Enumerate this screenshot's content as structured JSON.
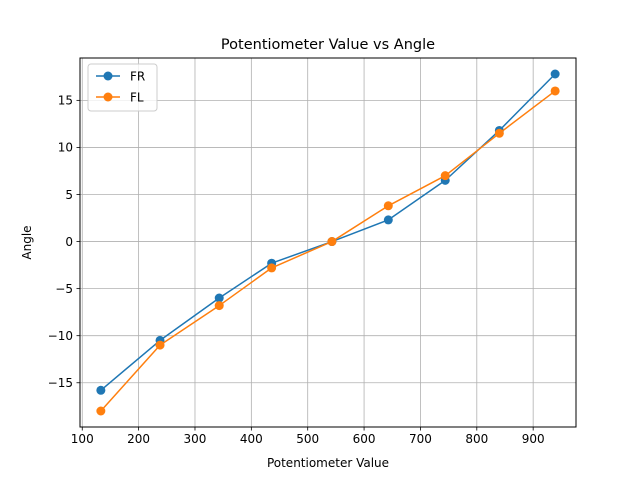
{
  "chart_data": {
    "type": "line",
    "title": "Potentiometer Value vs Angle",
    "xlabel": "Potentiometer Value",
    "ylabel": "Angle",
    "xlim": [
      96,
      976
    ],
    "ylim": [
      -19.7,
      19.5
    ],
    "xticks": [
      100,
      200,
      300,
      400,
      500,
      600,
      700,
      800,
      900
    ],
    "yticks": [
      -15,
      -10,
      -5,
      0,
      5,
      10,
      15
    ],
    "ytick_labels": [
      "−15",
      "−10",
      "−5",
      "0",
      "5",
      "10",
      "15"
    ],
    "grid": true,
    "legend_position": "top-left",
    "series": [
      {
        "name": "FR",
        "color": "#1f77b4",
        "x": [
          133,
          238,
          343,
          436,
          543,
          643,
          744,
          840,
          939
        ],
        "y": [
          -15.8,
          -10.5,
          -6.0,
          -2.3,
          0.0,
          2.3,
          6.5,
          11.8,
          17.8
        ]
      },
      {
        "name": "FL",
        "color": "#ff7f0e",
        "x": [
          133,
          238,
          343,
          436,
          543,
          643,
          744,
          840,
          939
        ],
        "y": [
          -18.0,
          -11.0,
          -6.8,
          -2.8,
          0.0,
          3.8,
          7.0,
          11.5,
          16.0
        ]
      }
    ]
  }
}
